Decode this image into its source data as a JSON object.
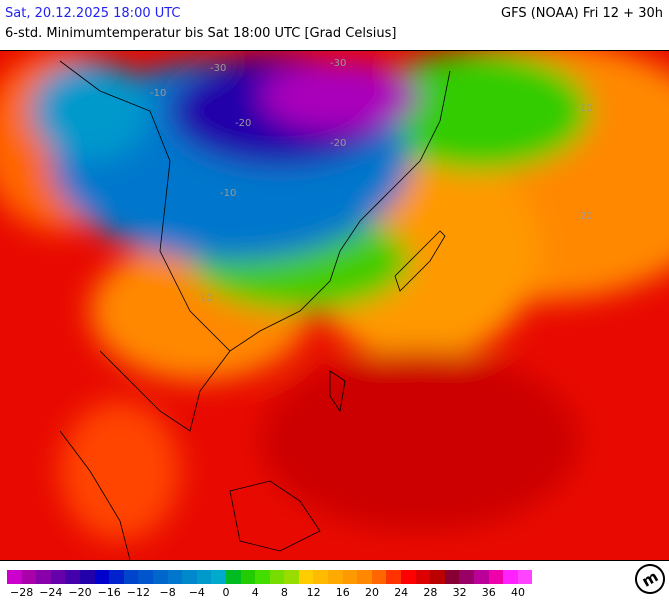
{
  "header": {
    "date": "Sat, 20.12.2025 18:00 UTC",
    "model": "GFS (NOAA) Fri 12 + 30h",
    "subtitle": "6-std. Minimumtemperatur bis Sat 18:00 UTC [Grad Celsius]"
  },
  "map": {
    "region": "East Asia / Western Pacific",
    "contour_labels": [
      "-30",
      "-20",
      "-10",
      "10",
      "20"
    ]
  },
  "legend": {
    "colors": [
      "#cc00cc",
      "#aa00aa",
      "#8800aa",
      "#6600aa",
      "#4400aa",
      "#2200aa",
      "#0000cc",
      "#0022cc",
      "#0044cc",
      "#0055cc",
      "#0066cc",
      "#0077cc",
      "#0088cc",
      "#0099cc",
      "#00aacc",
      "#00bb22",
      "#22cc00",
      "#44dd00",
      "#77dd00",
      "#99dd00",
      "#ffcc00",
      "#ffbb00",
      "#ffaa00",
      "#ff9900",
      "#ff8800",
      "#ff6600",
      "#ff3300",
      "#ff0000",
      "#dd0000",
      "#bb0000",
      "#880033",
      "#990066",
      "#bb0099",
      "#ee00aa",
      "#ff22ff",
      "#ff44ff"
    ],
    "labels": [
      "−28",
      "−24",
      "−20",
      "−16",
      "−12",
      "−8",
      "−4",
      "0",
      "4",
      "8",
      "12",
      "16",
      "20",
      "24",
      "28",
      "32",
      "36",
      "40"
    ]
  },
  "logo": "m"
}
